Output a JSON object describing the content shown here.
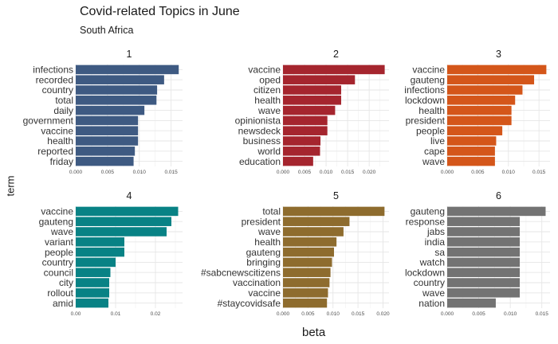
{
  "chart_data": {
    "type": "bar",
    "title": "Covid-related Topics in June",
    "subtitle": "South Africa",
    "xlabel": "beta",
    "ylabel": "term",
    "grid": true,
    "facets": [
      {
        "label": "1",
        "color": "#3e5a82",
        "xlim": [
          0,
          0.0168
        ],
        "ticks": [
          0.0,
          0.005,
          0.01,
          0.015
        ],
        "tick_labels": [
          "0.000",
          "0.005",
          "0.010",
          "0.015"
        ],
        "terms": [
          "infections",
          "recorded",
          "country",
          "total",
          "daily",
          "government",
          "vaccine",
          "health",
          "reported",
          "friday"
        ],
        "values": [
          0.0162,
          0.0139,
          0.0128,
          0.0127,
          0.0108,
          0.0098,
          0.0098,
          0.0098,
          0.0093,
          0.0091
        ]
      },
      {
        "label": "2",
        "color": "#a5252e",
        "xlim": [
          0,
          0.0246
        ],
        "ticks": [
          0.0,
          0.005,
          0.01,
          0.015,
          0.02
        ],
        "tick_labels": [
          "0.000",
          "0.005",
          "0.010",
          "0.015",
          "0.020"
        ],
        "terms": [
          "vaccine",
          "oped",
          "citizen",
          "health",
          "wave",
          "opinionista",
          "newsdeck",
          "business",
          "world",
          "education"
        ],
        "values": [
          0.0236,
          0.0167,
          0.0135,
          0.0135,
          0.0121,
          0.0103,
          0.0103,
          0.0087,
          0.0086,
          0.007
        ]
      },
      {
        "label": "3",
        "color": "#d4561a",
        "xlim": [
          0,
          0.0168
        ],
        "ticks": [
          0.0,
          0.005,
          0.01,
          0.015
        ],
        "tick_labels": [
          "0.000",
          "0.005",
          "0.010",
          "0.015"
        ],
        "terms": [
          "vaccine",
          "gauteng",
          "infections",
          "lockdown",
          "health",
          "president",
          "people",
          "live",
          "cape",
          "wave"
        ],
        "values": [
          0.0162,
          0.0142,
          0.0123,
          0.0111,
          0.0105,
          0.0105,
          0.009,
          0.008,
          0.0078,
          0.0078
        ]
      },
      {
        "label": "4",
        "color": "#088285",
        "xlim": [
          0,
          0.0268
        ],
        "ticks": [
          0.0,
          0.01,
          0.02
        ],
        "tick_labels": [
          "0.00",
          "0.01",
          "0.02"
        ],
        "terms": [
          "vaccine",
          "gauteng",
          "wave",
          "variant",
          "people",
          "country",
          "council",
          "city",
          "rollout",
          "amid"
        ],
        "values": [
          0.0257,
          0.024,
          0.0228,
          0.0122,
          0.0122,
          0.01,
          0.0087,
          0.0084,
          0.0084,
          0.0082
        ]
      },
      {
        "label": "5",
        "color": "#8e6c2e",
        "xlim": [
          0,
          0.0212
        ],
        "ticks": [
          0.0,
          0.005,
          0.01,
          0.015,
          0.02
        ],
        "tick_labels": [
          "0.000",
          "0.005",
          "0.010",
          "0.015",
          "0.020"
        ],
        "terms": [
          "total",
          "president",
          "wave",
          "health",
          "gauteng",
          "bringing",
          "#sabcnewscitizens",
          "vaccination",
          "vaccine",
          "#staycovidsafe"
        ],
        "values": [
          0.0203,
          0.0133,
          0.0121,
          0.0107,
          0.0102,
          0.0098,
          0.0095,
          0.0093,
          0.009,
          0.0088
        ]
      },
      {
        "label": "6",
        "color": "#737373",
        "xlim": [
          0,
          0.0163
        ],
        "ticks": [
          0.0,
          0.005,
          0.01,
          0.015
        ],
        "tick_labels": [
          "0.000",
          "0.005",
          "0.010",
          "0.015"
        ],
        "terms": [
          "gauteng",
          "response",
          "jabs",
          "india",
          "sa",
          "watch",
          "lockdown",
          "country",
          "wave",
          "nation"
        ],
        "values": [
          0.0156,
          0.0115,
          0.0115,
          0.0115,
          0.0115,
          0.0115,
          0.0115,
          0.0115,
          0.0115,
          0.0077
        ]
      }
    ]
  }
}
